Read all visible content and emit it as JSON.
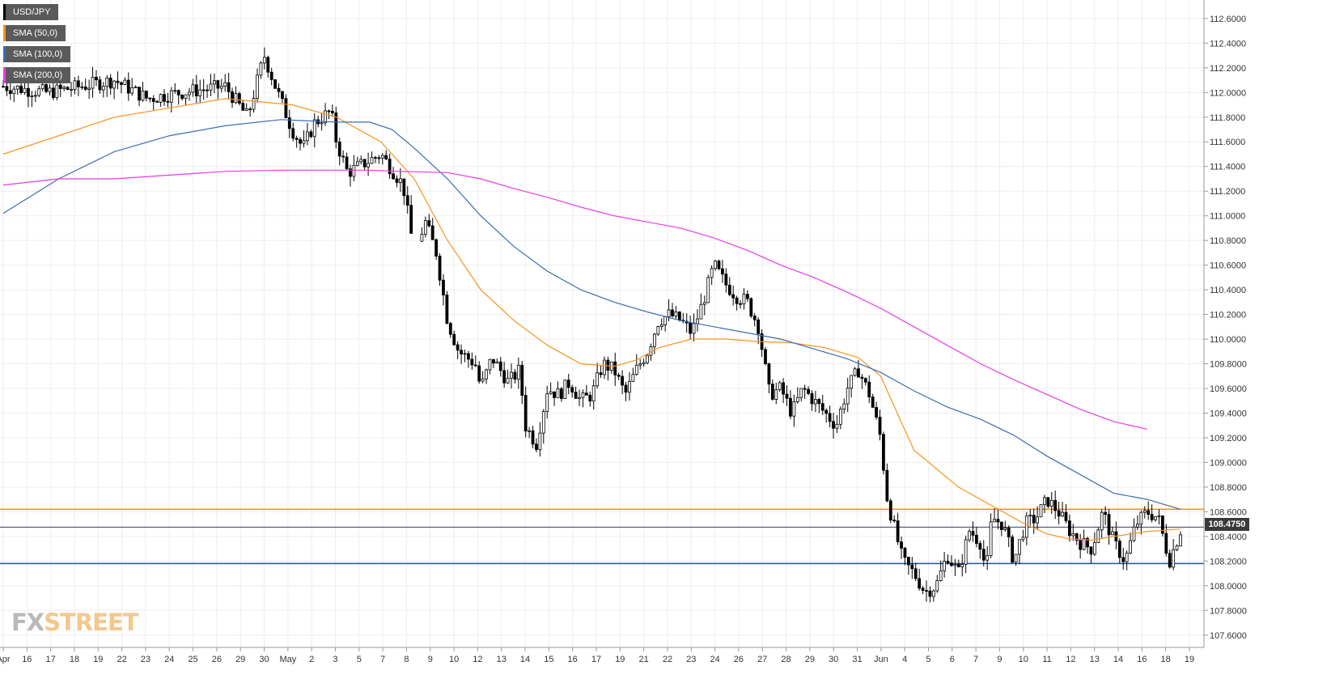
{
  "legend": {
    "symbol": "USD/JPY",
    "items": [
      {
        "label": "SMA (50,0)",
        "color": "#f7931e"
      },
      {
        "label": "SMA (100,0)",
        "color": "#3a6db5"
      },
      {
        "label": "SMA (200,0)",
        "color": "#e83be8"
      }
    ]
  },
  "logo": {
    "fx": "FX",
    "street": "STREET"
  },
  "last_price_label": "108.4750",
  "chart_data": {
    "type": "candlestick",
    "title": "",
    "instrument": "USD/JPY",
    "ylim": [
      107.5,
      112.75
    ],
    "y_ticks": [
      "112.6000",
      "112.4000",
      "112.2000",
      "112.0000",
      "111.8000",
      "111.6000",
      "111.4000",
      "111.2000",
      "111.0000",
      "110.8000",
      "110.6000",
      "110.4000",
      "110.2000",
      "110.0000",
      "109.8000",
      "109.6000",
      "109.4000",
      "109.2000",
      "109.0000",
      "108.8000",
      "108.6000",
      "108.4000",
      "108.2000",
      "108.0000",
      "107.8000",
      "107.6000"
    ],
    "x_ticks": [
      "Apr",
      "16",
      "17",
      "18",
      "19",
      "22",
      "23",
      "24",
      "25",
      "26",
      "29",
      "30",
      "May",
      "2",
      "3",
      "5",
      "7",
      "8",
      "9",
      "10",
      "12",
      "13",
      "14",
      "15",
      "16",
      "17",
      "19",
      "21",
      "22",
      "23",
      "24",
      "26",
      "27",
      "28",
      "29",
      "30",
      "31",
      "Jun",
      "4",
      "5",
      "6",
      "7",
      "9",
      "10",
      "11",
      "12",
      "13",
      "14",
      "16",
      "18",
      "19"
    ],
    "grid": true,
    "horizontal_levels": [
      {
        "value": 108.62,
        "color": "#f7931e"
      },
      {
        "value": 108.475,
        "color": "#3a3f55"
      },
      {
        "value": 108.18,
        "color": "#1d4fa0"
      }
    ],
    "price_path": [
      [
        0,
        112.05
      ],
      [
        4,
        112.0
      ],
      [
        7,
        112.05
      ],
      [
        10,
        112.1
      ],
      [
        13,
        111.95
      ],
      [
        16,
        112.0
      ],
      [
        20,
        112.05
      ],
      [
        22,
        111.8
      ],
      [
        23.5,
        112.3
      ],
      [
        24.5,
        112.05
      ],
      [
        26,
        111.7
      ],
      [
        27,
        111.55
      ],
      [
        28,
        111.75
      ],
      [
        29.5,
        111.85
      ],
      [
        30,
        111.6
      ],
      [
        31,
        111.35
      ],
      [
        33,
        111.45
      ],
      [
        34,
        111.5
      ],
      [
        36,
        111.25
      ],
      [
        37,
        110.7
      ],
      [
        38,
        110.95
      ],
      [
        39,
        110.7
      ],
      [
        40,
        110.15
      ],
      [
        41,
        109.9
      ],
      [
        42.5,
        109.8
      ],
      [
        43,
        109.6
      ],
      [
        44,
        109.85
      ],
      [
        45.5,
        109.65
      ],
      [
        46.5,
        109.75
      ],
      [
        47,
        109.3
      ],
      [
        48,
        109.15
      ],
      [
        49,
        109.6
      ],
      [
        50,
        109.55
      ],
      [
        51,
        109.65
      ],
      [
        52,
        109.5
      ],
      [
        53,
        109.55
      ],
      [
        54,
        109.8
      ],
      [
        55,
        109.75
      ],
      [
        56,
        109.55
      ],
      [
        57,
        109.75
      ],
      [
        58,
        109.9
      ],
      [
        59,
        110.15
      ],
      [
        60,
        110.2
      ],
      [
        61,
        110.15
      ],
      [
        62,
        110.05
      ],
      [
        63,
        110.3
      ],
      [
        64,
        110.6
      ],
      [
        65,
        110.45
      ],
      [
        66,
        110.35
      ],
      [
        67,
        110.3
      ],
      [
        68,
        110.1
      ],
      [
        69,
        109.55
      ],
      [
        70,
        109.6
      ],
      [
        71,
        109.4
      ],
      [
        72,
        109.6
      ],
      [
        73,
        109.5
      ],
      [
        74,
        109.4
      ],
      [
        75,
        109.3
      ],
      [
        76,
        109.6
      ],
      [
        77,
        109.75
      ],
      [
        78,
        109.55
      ],
      [
        79,
        109.2
      ],
      [
        79.5,
        108.75
      ],
      [
        80,
        108.55
      ],
      [
        81,
        108.2
      ],
      [
        82,
        108.1
      ],
      [
        83,
        107.95
      ],
      [
        84,
        108.0
      ],
      [
        85,
        108.25
      ],
      [
        86,
        108.1
      ],
      [
        87,
        108.45
      ],
      [
        88,
        108.35
      ],
      [
        88.5,
        108.1
      ],
      [
        89,
        108.55
      ],
      [
        90,
        108.5
      ],
      [
        91,
        108.2
      ],
      [
        92,
        108.5
      ],
      [
        93,
        108.55
      ],
      [
        94,
        108.7
      ],
      [
        95,
        108.6
      ],
      [
        96,
        108.45
      ],
      [
        97,
        108.35
      ],
      [
        98,
        108.3
      ],
      [
        99,
        108.6
      ],
      [
        100,
        108.35
      ],
      [
        101,
        108.2
      ],
      [
        102,
        108.5
      ],
      [
        103,
        108.6
      ],
      [
        104,
        108.55
      ],
      [
        105,
        108.2
      ],
      [
        106,
        108.45
      ]
    ],
    "series": [
      {
        "name": "SMA (50,0)",
        "points": [
          [
            0,
            111.5
          ],
          [
            10,
            111.8
          ],
          [
            20,
            111.95
          ],
          [
            26,
            111.9
          ],
          [
            30,
            111.8
          ],
          [
            34,
            111.6
          ],
          [
            37,
            111.3
          ],
          [
            40,
            110.8
          ],
          [
            43,
            110.4
          ],
          [
            46,
            110.15
          ],
          [
            49,
            109.95
          ],
          [
            52,
            109.8
          ],
          [
            55,
            109.78
          ],
          [
            57,
            109.83
          ],
          [
            59,
            109.93
          ],
          [
            62,
            110.0
          ],
          [
            65,
            110.0
          ],
          [
            68,
            109.98
          ],
          [
            71,
            109.97
          ],
          [
            74,
            109.93
          ],
          [
            77,
            109.85
          ],
          [
            79,
            109.7
          ],
          [
            80,
            109.5
          ],
          [
            81,
            109.3
          ],
          [
            82,
            109.1
          ],
          [
            84,
            108.95
          ],
          [
            86,
            108.8
          ],
          [
            88,
            108.7
          ],
          [
            90,
            108.6
          ],
          [
            92,
            108.5
          ],
          [
            94,
            108.42
          ],
          [
            96,
            108.38
          ],
          [
            98,
            108.37
          ],
          [
            100,
            108.4
          ],
          [
            103,
            108.44
          ],
          [
            106,
            108.46
          ]
        ]
      },
      {
        "name": "SMA (100,0)",
        "points": [
          [
            0,
            111.02
          ],
          [
            5,
            111.3
          ],
          [
            10,
            111.52
          ],
          [
            15,
            111.65
          ],
          [
            20,
            111.73
          ],
          [
            25,
            111.78
          ],
          [
            30,
            111.76
          ],
          [
            33,
            111.76
          ],
          [
            35,
            111.7
          ],
          [
            37,
            111.55
          ],
          [
            40,
            111.3
          ],
          [
            43,
            111.0
          ],
          [
            46,
            110.75
          ],
          [
            49,
            110.55
          ],
          [
            52,
            110.4
          ],
          [
            55,
            110.3
          ],
          [
            58,
            110.22
          ],
          [
            61,
            110.15
          ],
          [
            64,
            110.1
          ],
          [
            67,
            110.05
          ],
          [
            70,
            110.0
          ],
          [
            73,
            109.92
          ],
          [
            76,
            109.84
          ],
          [
            79,
            109.73
          ],
          [
            82,
            109.58
          ],
          [
            85,
            109.45
          ],
          [
            88,
            109.35
          ],
          [
            91,
            109.22
          ],
          [
            94,
            109.05
          ],
          [
            97,
            108.9
          ],
          [
            100,
            108.75
          ],
          [
            103,
            108.7
          ],
          [
            106,
            108.62
          ]
        ]
      },
      {
        "name": "SMA (200,0)",
        "points": [
          [
            0,
            111.25
          ],
          [
            5,
            111.3
          ],
          [
            10,
            111.3
          ],
          [
            15,
            111.33
          ],
          [
            20,
            111.36
          ],
          [
            25,
            111.37
          ],
          [
            30,
            111.37
          ],
          [
            33,
            111.37
          ],
          [
            36,
            111.36
          ],
          [
            40,
            111.35
          ],
          [
            43,
            111.3
          ],
          [
            46,
            111.22
          ],
          [
            49,
            111.15
          ],
          [
            52,
            111.07
          ],
          [
            55,
            111.0
          ],
          [
            58,
            110.95
          ],
          [
            61,
            110.9
          ],
          [
            64,
            110.82
          ],
          [
            67,
            110.72
          ],
          [
            70,
            110.6
          ],
          [
            73,
            110.5
          ],
          [
            76,
            110.38
          ],
          [
            79,
            110.25
          ],
          [
            82,
            110.1
          ],
          [
            85,
            109.95
          ],
          [
            88,
            109.8
          ],
          [
            91,
            109.67
          ],
          [
            94,
            109.55
          ],
          [
            97,
            109.43
          ],
          [
            100,
            109.33
          ],
          [
            103,
            109.27
          ]
        ]
      }
    ]
  }
}
